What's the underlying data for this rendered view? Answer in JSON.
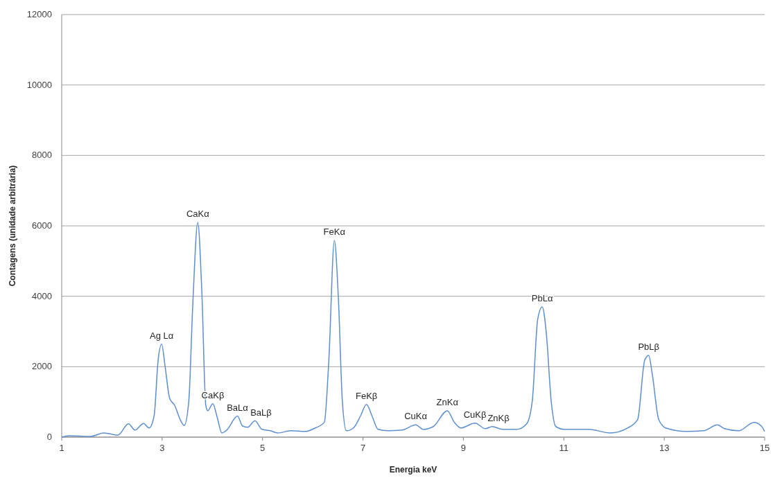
{
  "chart_data": {
    "type": "line",
    "xlabel": "Energia keV",
    "ylabel": "Contagens (unidade arbitrária)",
    "xlim": [
      1,
      15
    ],
    "xticks": [
      1,
      3,
      5,
      7,
      9,
      11,
      13,
      15
    ],
    "ylim": [
      0,
      12000
    ],
    "yticks": [
      0,
      2000,
      4000,
      6000,
      8000,
      10000,
      12000
    ],
    "grid": "y",
    "marker": "none",
    "line_style": "solid",
    "series": [
      {
        "color": "#5b8fd0",
        "x": [
          1.0,
          1.15,
          1.57,
          1.84,
          2.12,
          2.33,
          2.46,
          2.63,
          2.74,
          2.84,
          2.92,
          2.99,
          3.06,
          3.15,
          3.25,
          3.36,
          3.44,
          3.53,
          3.61,
          3.71,
          3.79,
          3.87,
          3.91,
          4.01,
          4.09,
          4.19,
          4.3,
          4.5,
          4.6,
          4.7,
          4.85,
          4.99,
          5.16,
          5.3,
          5.57,
          5.85,
          6.05,
          6.23,
          6.32,
          6.43,
          6.51,
          6.59,
          6.67,
          6.81,
          6.95,
          7.07,
          7.18,
          7.3,
          7.5,
          7.78,
          8.05,
          8.2,
          8.4,
          8.68,
          8.82,
          8.95,
          9.23,
          9.44,
          9.57,
          9.78,
          10.06,
          10.26,
          10.37,
          10.48,
          10.57,
          10.65,
          10.75,
          10.84,
          11.02,
          11.5,
          11.92,
          12.27,
          12.47,
          12.61,
          12.69,
          12.76,
          12.89,
          13.03,
          13.44,
          13.78,
          14.06,
          14.2,
          14.48,
          14.79,
          14.93,
          15.0
        ],
        "values": [
          0,
          40,
          20,
          120,
          60,
          380,
          200,
          390,
          260,
          600,
          2180,
          2640,
          2000,
          1100,
          900,
          500,
          330,
          1000,
          3750,
          6100,
          4150,
          900,
          750,
          950,
          600,
          120,
          220,
          600,
          320,
          280,
          460,
          220,
          180,
          120,
          180,
          160,
          260,
          420,
          2180,
          5580,
          3950,
          1000,
          180,
          260,
          600,
          930,
          600,
          220,
          180,
          200,
          350,
          220,
          300,
          750,
          420,
          260,
          400,
          240,
          300,
          220,
          220,
          380,
          1000,
          3350,
          3700,
          2970,
          1000,
          300,
          220,
          220,
          120,
          260,
          500,
          2180,
          2320,
          1800,
          500,
          260,
          160,
          180,
          350,
          240,
          180,
          420,
          320,
          160
        ]
      }
    ],
    "annotations": [
      {
        "text": "Ag Lα",
        "x": 2.99,
        "y": 2640
      },
      {
        "text": "CaKα",
        "x": 3.71,
        "y": 6100
      },
      {
        "text": "CaKβ",
        "x": 4.01,
        "y": 950
      },
      {
        "text": "BaLα",
        "x": 4.5,
        "y": 600
      },
      {
        "text": "BaLβ",
        "x": 4.85,
        "y": 460
      },
      {
        "text": "FeKα",
        "x": 6.43,
        "y": 5580
      },
      {
        "text": "FeKβ",
        "x": 7.07,
        "y": 930
      },
      {
        "text": "CuKα",
        "x": 8.05,
        "y": 350
      },
      {
        "text": "ZnKα",
        "x": 8.68,
        "y": 750
      },
      {
        "text": "CuKβ",
        "x": 9.23,
        "y": 400
      },
      {
        "text": "ZnKβ",
        "x": 9.57,
        "y": 300
      },
      {
        "text": "PbLα",
        "x": 10.57,
        "y": 3700
      },
      {
        "text": "PbLβ",
        "x": 12.69,
        "y": 2320
      }
    ]
  }
}
